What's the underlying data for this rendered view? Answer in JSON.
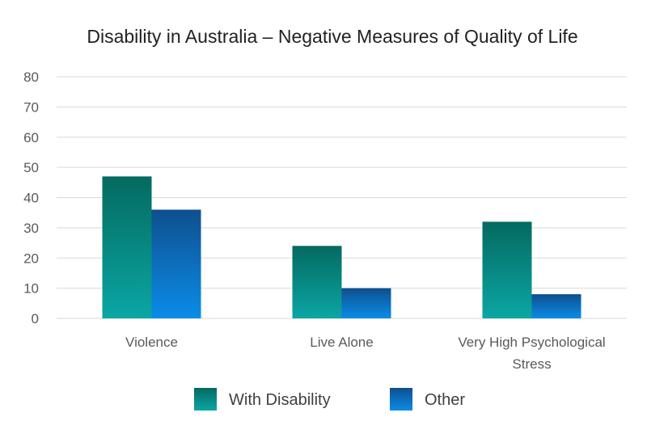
{
  "chart_data": {
    "type": "bar",
    "title": "Disability in Australia – Negative Measures of Quality of Life",
    "xlabel": "",
    "ylabel": "",
    "ylim": [
      0,
      80
    ],
    "yticks": [
      0,
      10,
      20,
      30,
      40,
      50,
      60,
      70,
      80
    ],
    "grid": true,
    "legend_position": "bottom",
    "categories": [
      [
        "Violence"
      ],
      [
        "Live Alone"
      ],
      [
        "Very High Psychological",
        "Stress"
      ]
    ],
    "series": [
      {
        "name": "With Disability",
        "values": [
          47,
          24,
          32
        ],
        "color_top": "#046a60",
        "color_bottom": "#0ba6a4"
      },
      {
        "name": "Other",
        "values": [
          36,
          10,
          8
        ],
        "color_top": "#0f4f8e",
        "color_bottom": "#0a8ce8"
      }
    ]
  }
}
